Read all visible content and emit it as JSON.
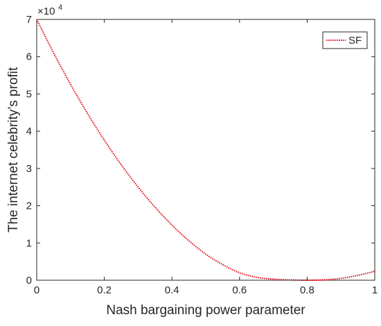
{
  "chart_data": {
    "type": "line",
    "xlabel": "Nash bargaining power parameter",
    "ylabel": "The internet celebrity’s profit",
    "y_exponent_label": "×10",
    "y_exponent_power": "4",
    "xlim": [
      0,
      1
    ],
    "ylim": [
      0,
      70000
    ],
    "x_ticks": [
      0,
      0.2,
      0.4,
      0.6,
      0.8,
      1
    ],
    "x_tick_labels": [
      "0",
      "0.2",
      "0.4",
      "0.6",
      "0.8",
      "1"
    ],
    "y_ticks": [
      0,
      10000,
      20000,
      30000,
      40000,
      50000,
      60000,
      70000
    ],
    "y_tick_labels": [
      "0",
      "1",
      "2",
      "3",
      "4",
      "5",
      "6",
      "7"
    ],
    "grid": false,
    "legend_position": "top-right",
    "series": [
      {
        "name": "SF",
        "color": "#e0000f",
        "line_style": "dotted",
        "x": [
          0,
          0.05,
          0.1,
          0.15,
          0.2,
          0.25,
          0.3,
          0.35,
          0.4,
          0.45,
          0.5,
          0.55,
          0.6,
          0.65,
          0.7,
          0.75,
          0.8,
          0.85,
          0.9,
          0.95,
          1.0
        ],
        "y": [
          70000,
          61000,
          52600,
          44800,
          37600,
          31000,
          25000,
          19600,
          14800,
          10600,
          7000,
          4200,
          2000,
          800,
          300,
          80,
          0,
          100,
          500,
          1300,
          2400
        ]
      }
    ]
  }
}
